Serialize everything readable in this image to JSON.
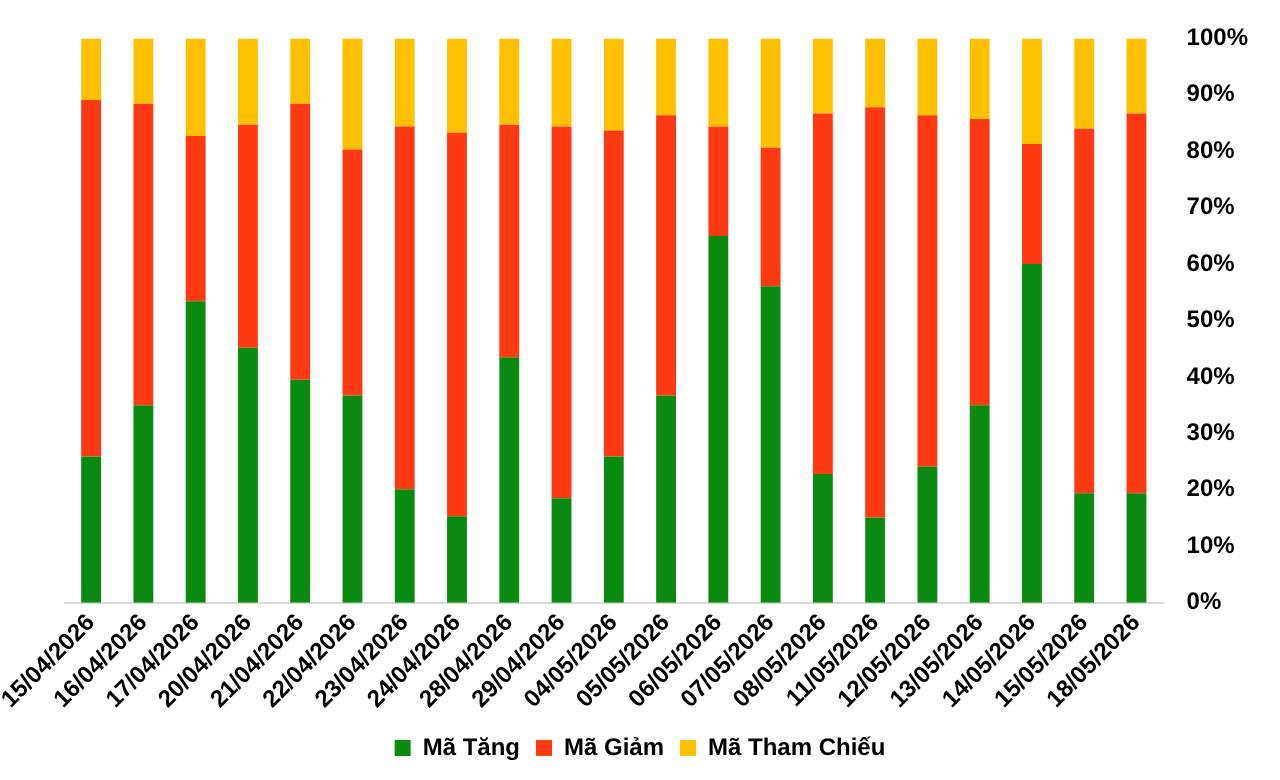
{
  "chart_data": {
    "type": "bar",
    "stacked": true,
    "categories": [
      "15/04/2026",
      "16/04/2026",
      "17/04/2026",
      "20/04/2026",
      "21/04/2026",
      "22/04/2026",
      "23/04/2026",
      "24/04/2026",
      "28/04/2026",
      "29/04/2026",
      "04/05/2026",
      "05/05/2026",
      "06/05/2026",
      "07/05/2026",
      "08/05/2026",
      "11/05/2026",
      "12/05/2026",
      "13/05/2026",
      "14/05/2026",
      "15/05/2026",
      "18/05/2026"
    ],
    "series": [
      {
        "name": "Mã Tăng",
        "color": "#0b8a12",
        "values": [
          25.9,
          35.0,
          53.4,
          45.2,
          39.5,
          36.7,
          20.1,
          15.3,
          43.5,
          18.5,
          25.9,
          36.7,
          65.0,
          56.1,
          22.8,
          15.1,
          24.1,
          35.0,
          60.0,
          19.4,
          19.4
        ]
      },
      {
        "name": "Mã Giảm",
        "color": "#ff3a12",
        "values": [
          63.2,
          53.4,
          29.3,
          39.5,
          48.9,
          43.6,
          64.3,
          68.0,
          41.2,
          65.9,
          57.8,
          49.7,
          19.4,
          24.5,
          63.9,
          72.7,
          62.3,
          50.7,
          21.3,
          64.6,
          67.3
        ]
      },
      {
        "name": "Mã Tham Chiếu",
        "color": "#ffc000",
        "values": [
          10.9,
          11.6,
          17.3,
          15.3,
          11.6,
          19.7,
          15.6,
          16.7,
          15.3,
          15.6,
          16.3,
          13.6,
          15.6,
          19.4,
          13.3,
          12.2,
          13.6,
          14.3,
          18.7,
          16.0,
          13.3
        ]
      }
    ],
    "ylim": [
      0,
      100
    ],
    "yticks": [
      {
        "value": 0,
        "label": "0%"
      },
      {
        "value": 10,
        "label": "10%"
      },
      {
        "value": 20,
        "label": "20%"
      },
      {
        "value": 30,
        "label": "30%"
      },
      {
        "value": 40,
        "label": "40%"
      },
      {
        "value": 50,
        "label": "50%"
      },
      {
        "value": 60,
        "label": "60%"
      },
      {
        "value": 70,
        "label": "70%"
      },
      {
        "value": 80,
        "label": "80%"
      },
      {
        "value": 90,
        "label": "90%"
      },
      {
        "value": 100,
        "label": "100%"
      }
    ],
    "grid": false,
    "legend": "bottom"
  }
}
